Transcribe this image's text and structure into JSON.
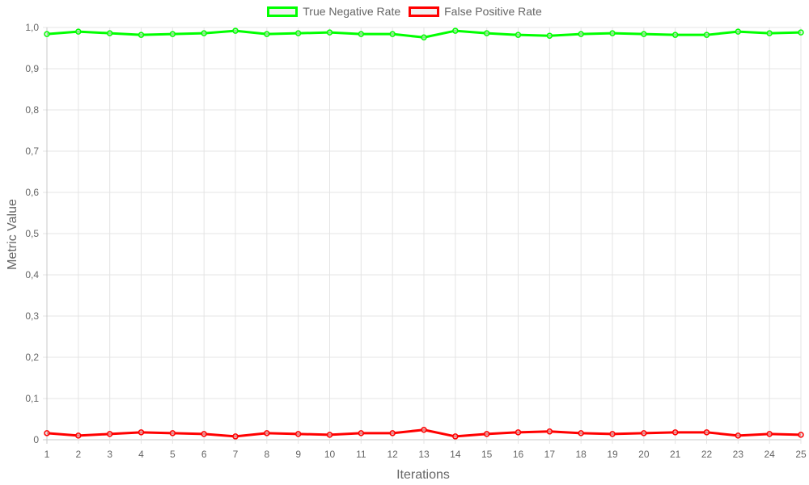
{
  "chart_data": {
    "type": "line",
    "x": [
      1,
      2,
      3,
      4,
      5,
      6,
      7,
      8,
      9,
      10,
      11,
      12,
      13,
      14,
      15,
      16,
      17,
      18,
      19,
      20,
      21,
      22,
      23,
      24,
      25
    ],
    "series": [
      {
        "name": "True Negative Rate",
        "color": "#00ff00",
        "values": [
          0.984,
          0.99,
          0.986,
          0.982,
          0.984,
          0.986,
          0.992,
          0.984,
          0.986,
          0.988,
          0.984,
          0.984,
          0.976,
          0.992,
          0.986,
          0.982,
          0.98,
          0.984,
          0.986,
          0.984,
          0.982,
          0.982,
          0.99,
          0.986,
          0.988
        ]
      },
      {
        "name": "False Positive Rate",
        "color": "#ff0000",
        "values": [
          0.016,
          0.01,
          0.014,
          0.018,
          0.016,
          0.014,
          0.008,
          0.016,
          0.014,
          0.012,
          0.016,
          0.016,
          0.024,
          0.008,
          0.014,
          0.018,
          0.02,
          0.016,
          0.014,
          0.016,
          0.018,
          0.018,
          0.01,
          0.014,
          0.012
        ]
      }
    ],
    "xlabel": "Iterations",
    "ylabel": "Metric Value",
    "ylim": [
      0,
      1
    ],
    "yticks": [
      "0",
      "0,1",
      "0,2",
      "0,3",
      "0,4",
      "0,5",
      "0,6",
      "0,7",
      "0,8",
      "0,9",
      "1,0"
    ],
    "xticks": [
      "1",
      "2",
      "3",
      "4",
      "5",
      "6",
      "7",
      "8",
      "9",
      "10",
      "11",
      "12",
      "13",
      "14",
      "15",
      "16",
      "17",
      "18",
      "19",
      "20",
      "21",
      "22",
      "23",
      "24",
      "25"
    ],
    "grid": true,
    "legend_position": "top"
  }
}
